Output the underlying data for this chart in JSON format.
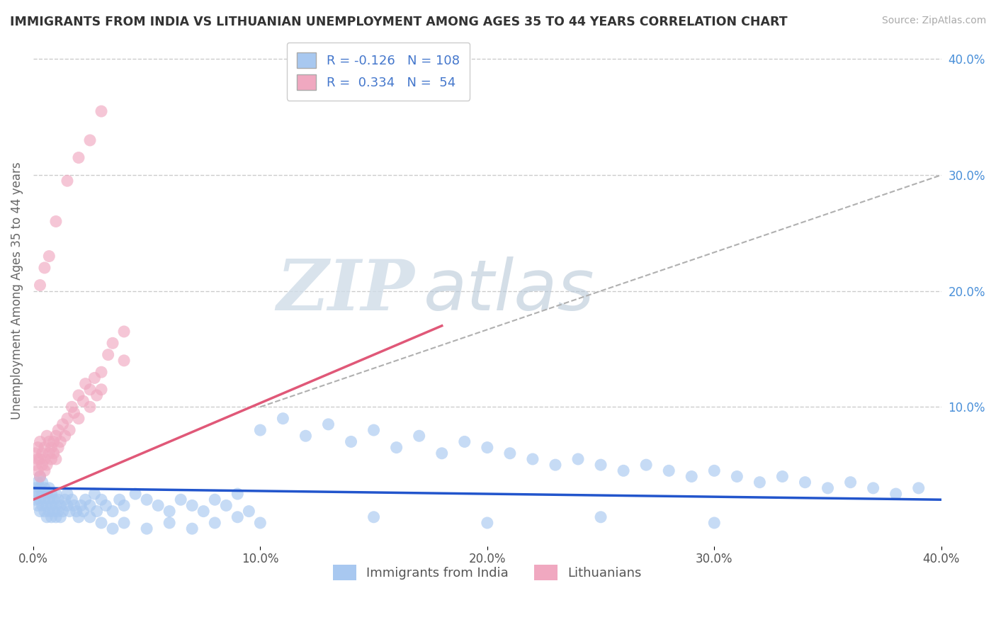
{
  "title": "IMMIGRANTS FROM INDIA VS LITHUANIAN UNEMPLOYMENT AMONG AGES 35 TO 44 YEARS CORRELATION CHART",
  "source": "Source: ZipAtlas.com",
  "ylabel": "Unemployment Among Ages 35 to 44 years",
  "legend_labels": [
    "Immigrants from India",
    "Lithuanians"
  ],
  "R_blue": -0.126,
  "N_blue": 108,
  "R_pink": 0.334,
  "N_pink": 54,
  "blue_color": "#a8c8f0",
  "pink_color": "#f0a8c0",
  "blue_line_color": "#2255cc",
  "pink_line_color": "#e05878",
  "watermark_zip": "ZIP",
  "watermark_atlas": "atlas",
  "xlim": [
    0.0,
    0.4
  ],
  "ylim": [
    -0.02,
    0.42
  ],
  "x_ticks": [
    0.0,
    0.1,
    0.2,
    0.3,
    0.4
  ],
  "x_tick_labels": [
    "0.0%",
    "10.0%",
    "20.0%",
    "30.0%",
    "40.0%"
  ],
  "y_ticks_right": [
    0.1,
    0.2,
    0.3,
    0.4
  ],
  "y_tick_labels_right": [
    "10.0%",
    "20.0%",
    "30.0%",
    "40.0%"
  ],
  "grid_lines": [
    0.1,
    0.2,
    0.3,
    0.4
  ],
  "blue_scatter_x": [
    0.001,
    0.001,
    0.002,
    0.002,
    0.002,
    0.003,
    0.003,
    0.003,
    0.003,
    0.004,
    0.004,
    0.004,
    0.005,
    0.005,
    0.005,
    0.006,
    0.006,
    0.006,
    0.007,
    0.007,
    0.007,
    0.008,
    0.008,
    0.008,
    0.009,
    0.009,
    0.01,
    0.01,
    0.01,
    0.011,
    0.011,
    0.012,
    0.012,
    0.013,
    0.014,
    0.015,
    0.015,
    0.016,
    0.017,
    0.018,
    0.019,
    0.02,
    0.021,
    0.022,
    0.023,
    0.025,
    0.027,
    0.028,
    0.03,
    0.032,
    0.035,
    0.038,
    0.04,
    0.045,
    0.05,
    0.055,
    0.06,
    0.065,
    0.07,
    0.075,
    0.08,
    0.085,
    0.09,
    0.095,
    0.1,
    0.11,
    0.12,
    0.13,
    0.14,
    0.15,
    0.16,
    0.17,
    0.18,
    0.19,
    0.2,
    0.21,
    0.22,
    0.23,
    0.24,
    0.25,
    0.26,
    0.27,
    0.28,
    0.29,
    0.3,
    0.31,
    0.32,
    0.33,
    0.34,
    0.35,
    0.36,
    0.37,
    0.38,
    0.39,
    0.025,
    0.03,
    0.035,
    0.04,
    0.05,
    0.06,
    0.07,
    0.08,
    0.09,
    0.1,
    0.15,
    0.2,
    0.25,
    0.3
  ],
  "blue_scatter_y": [
    0.02,
    0.03,
    0.015,
    0.025,
    0.035,
    0.01,
    0.02,
    0.03,
    0.04,
    0.015,
    0.025,
    0.035,
    0.01,
    0.02,
    0.03,
    0.015,
    0.025,
    0.005,
    0.01,
    0.02,
    0.03,
    0.015,
    0.025,
    0.005,
    0.01,
    0.02,
    0.015,
    0.025,
    0.005,
    0.01,
    0.02,
    0.015,
    0.005,
    0.01,
    0.02,
    0.015,
    0.025,
    0.01,
    0.02,
    0.015,
    0.01,
    0.005,
    0.015,
    0.01,
    0.02,
    0.015,
    0.025,
    0.01,
    0.02,
    0.015,
    0.01,
    0.02,
    0.015,
    0.025,
    0.02,
    0.015,
    0.01,
    0.02,
    0.015,
    0.01,
    0.02,
    0.015,
    0.025,
    0.01,
    0.08,
    0.09,
    0.075,
    0.085,
    0.07,
    0.08,
    0.065,
    0.075,
    0.06,
    0.07,
    0.065,
    0.06,
    0.055,
    0.05,
    0.055,
    0.05,
    0.045,
    0.05,
    0.045,
    0.04,
    0.045,
    0.04,
    0.035,
    0.04,
    0.035,
    0.03,
    0.035,
    0.03,
    0.025,
    0.03,
    0.005,
    0.0,
    -0.005,
    0.0,
    -0.005,
    0.0,
    -0.005,
    0.0,
    0.005,
    0.0,
    0.005,
    0.0,
    0.005,
    0.0
  ],
  "pink_scatter_x": [
    0.001,
    0.001,
    0.002,
    0.002,
    0.002,
    0.003,
    0.003,
    0.003,
    0.004,
    0.004,
    0.005,
    0.005,
    0.005,
    0.006,
    0.006,
    0.007,
    0.007,
    0.008,
    0.008,
    0.009,
    0.009,
    0.01,
    0.01,
    0.011,
    0.011,
    0.012,
    0.013,
    0.014,
    0.015,
    0.016,
    0.017,
    0.018,
    0.02,
    0.02,
    0.022,
    0.023,
    0.025,
    0.025,
    0.027,
    0.028,
    0.03,
    0.03,
    0.033,
    0.035,
    0.04,
    0.04,
    0.003,
    0.005,
    0.007,
    0.01,
    0.015,
    0.02,
    0.025,
    0.03
  ],
  "pink_scatter_y": [
    0.05,
    0.06,
    0.045,
    0.055,
    0.065,
    0.04,
    0.055,
    0.07,
    0.05,
    0.06,
    0.045,
    0.055,
    0.065,
    0.075,
    0.05,
    0.06,
    0.07,
    0.055,
    0.065,
    0.06,
    0.07,
    0.055,
    0.075,
    0.065,
    0.08,
    0.07,
    0.085,
    0.075,
    0.09,
    0.08,
    0.1,
    0.095,
    0.11,
    0.09,
    0.105,
    0.12,
    0.115,
    0.1,
    0.125,
    0.11,
    0.13,
    0.115,
    0.145,
    0.155,
    0.165,
    0.14,
    0.205,
    0.22,
    0.23,
    0.26,
    0.295,
    0.315,
    0.33,
    0.355
  ],
  "pink_line_x_start": 0.0,
  "pink_line_x_end": 0.18,
  "pink_line_y_start": 0.02,
  "pink_line_y_end": 0.17,
  "blue_line_y_start": 0.03,
  "blue_line_y_end": 0.02,
  "dashed_line_x": [
    0.1,
    0.4
  ],
  "dashed_line_y": [
    0.1,
    0.3
  ]
}
